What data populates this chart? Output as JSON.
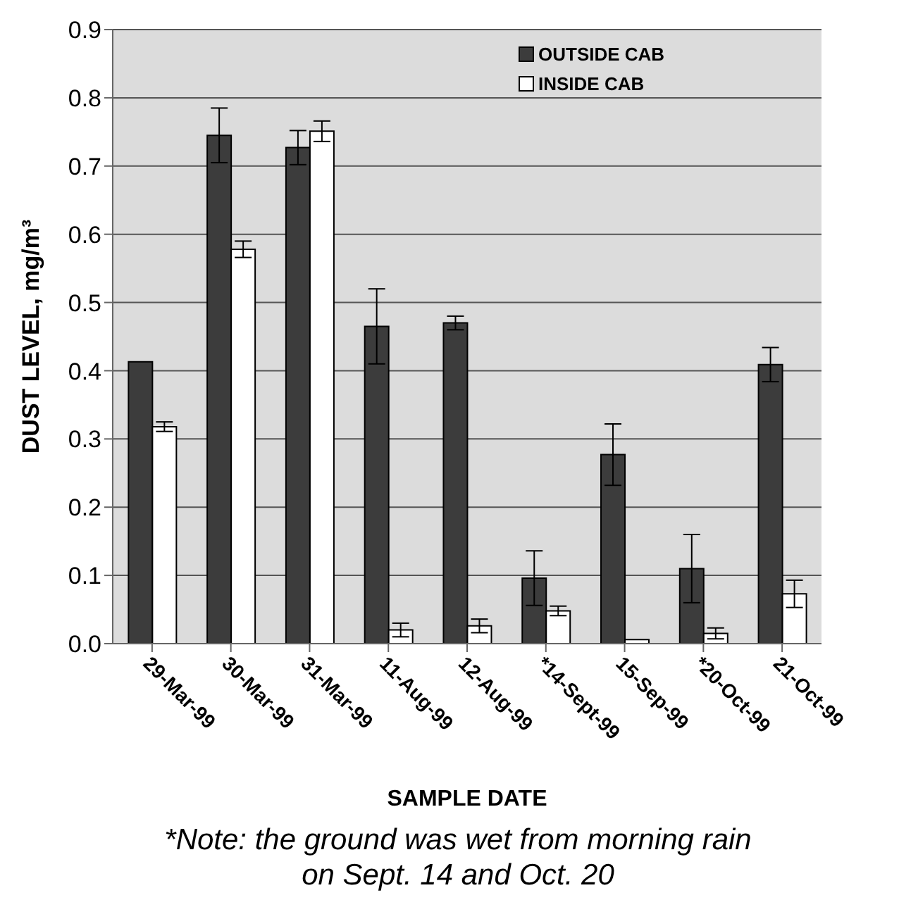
{
  "chart_data": {
    "type": "bar",
    "categories": [
      "29-Mar-99",
      "30-Mar-99",
      "31-Mar-99",
      "11-Aug-99",
      "12-Aug-99",
      "*14-Sept-99",
      "15-Sep-99",
      "*20-Oct-99",
      "21-Oct-99"
    ],
    "series": [
      {
        "name": "OUTSIDE CAB",
        "color": "#3c3c3c",
        "values": [
          0.413,
          0.745,
          0.727,
          0.465,
          0.47,
          0.096,
          0.277,
          0.11,
          0.409
        ],
        "errors": [
          null,
          0.04,
          0.025,
          0.055,
          0.01,
          0.04,
          0.045,
          0.05,
          0.025
        ]
      },
      {
        "name": "INSIDE CAB",
        "color": "#ffffff",
        "values": [
          0.318,
          0.578,
          0.751,
          0.02,
          0.026,
          0.048,
          0.006,
          0.015,
          0.073
        ],
        "errors": [
          0.007,
          0.012,
          0.015,
          0.01,
          0.01,
          0.007,
          null,
          0.008,
          0.02
        ]
      }
    ],
    "xlabel": "SAMPLE DATE",
    "ylabel": "DUST LEVEL, mg/m³",
    "ylim": [
      0,
      0.9
    ],
    "yticks": [
      {
        "value": 0,
        "label": "0.0"
      },
      0.1,
      0.2,
      0.3,
      0.4,
      0.5,
      0.6,
      0.7,
      0.8,
      0.9
    ],
    "grid": "y",
    "legend": "top right",
    "annotations": [
      "*Note: the ground was wet from morning rain on Sept. 14 and Oct. 20"
    ]
  }
}
